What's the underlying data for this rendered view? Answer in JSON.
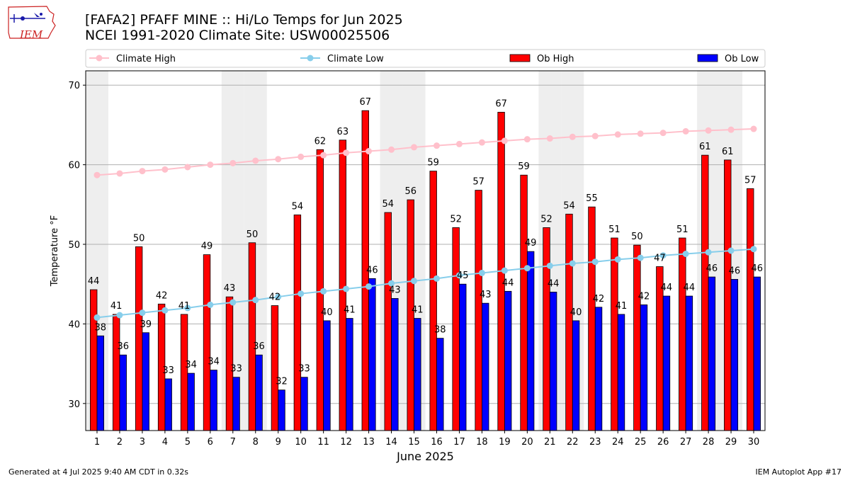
{
  "logo": {
    "text": "IEM",
    "icon": "iem-iowa-logo"
  },
  "header": {
    "title_line1": "[FAFA2] PFAFF MINE :: Hi/Lo Temps for Jun 2025",
    "title_line2": "NCEI 1991-2020 Climate Site: USW00025506"
  },
  "footer": {
    "left": "Generated at 4 Jul 2025 9:40 AM CDT in 0.32s",
    "right": "IEM Autoplot App #17"
  },
  "chart_data": {
    "type": "bar",
    "xlabel": "June 2025",
    "ylabel": "Temperature °F",
    "ylim": [
      26.6,
      71.8
    ],
    "yticks": [
      30,
      40,
      50,
      60,
      70
    ],
    "grid": true,
    "legend_placement": "top",
    "categories": [
      "1",
      "2",
      "3",
      "4",
      "5",
      "6",
      "7",
      "8",
      "9",
      "10",
      "11",
      "12",
      "13",
      "14",
      "15",
      "16",
      "17",
      "18",
      "19",
      "20",
      "21",
      "22",
      "23",
      "24",
      "25",
      "26",
      "27",
      "28",
      "29",
      "30"
    ],
    "weekend_days": [
      1,
      7,
      8,
      14,
      15,
      21,
      22,
      28,
      29
    ],
    "series": [
      {
        "name": "Climate High",
        "kind": "line",
        "color": "#ffc0cb",
        "values": [
          58.7,
          58.9,
          59.2,
          59.4,
          59.7,
          60.0,
          60.2,
          60.5,
          60.7,
          61.0,
          61.2,
          61.5,
          61.7,
          61.9,
          62.2,
          62.4,
          62.6,
          62.8,
          63.0,
          63.2,
          63.3,
          63.5,
          63.6,
          63.8,
          63.9,
          64.0,
          64.2,
          64.3,
          64.4,
          64.5
        ]
      },
      {
        "name": "Climate Low",
        "kind": "line",
        "color": "#87ceeb",
        "values": [
          40.8,
          41.1,
          41.4,
          41.7,
          42.0,
          42.4,
          42.7,
          43.0,
          43.4,
          43.8,
          44.1,
          44.4,
          44.7,
          45.1,
          45.4,
          45.7,
          46.1,
          46.4,
          46.7,
          47.0,
          47.3,
          47.6,
          47.8,
          48.1,
          48.3,
          48.6,
          48.8,
          49.0,
          49.2,
          49.4
        ]
      },
      {
        "name": "Ob High",
        "kind": "bar",
        "color": "#ff0000",
        "values": [
          44.3,
          41.2,
          49.7,
          42.5,
          41.2,
          48.7,
          43.4,
          50.2,
          42.3,
          53.7,
          61.9,
          63.1,
          66.8,
          54.0,
          55.6,
          59.2,
          52.1,
          56.8,
          66.6,
          58.7,
          52.1,
          53.8,
          54.7,
          50.8,
          49.9,
          47.2,
          50.8,
          61.2,
          60.6,
          57.0
        ],
        "labels": [
          "44",
          "41",
          "50",
          "42",
          "41",
          "49",
          "43",
          "50",
          "42",
          "54",
          "62",
          "63",
          "67",
          "54",
          "56",
          "59",
          "52",
          "57",
          "67",
          "59",
          "52",
          "54",
          "55",
          "51",
          "50",
          "47",
          "51",
          "61",
          "61",
          "57"
        ]
      },
      {
        "name": "Ob Low",
        "kind": "bar",
        "color": "#0000ff",
        "values": [
          38.5,
          36.1,
          38.9,
          33.1,
          33.8,
          34.2,
          33.3,
          36.1,
          31.7,
          33.3,
          40.4,
          40.7,
          45.7,
          43.2,
          40.7,
          38.2,
          45.0,
          42.6,
          44.1,
          49.1,
          44.0,
          40.4,
          42.1,
          41.2,
          42.4,
          43.5,
          43.5,
          45.9,
          45.6,
          45.9
        ],
        "labels": [
          "38",
          "36",
          "39",
          "33",
          "34",
          "34",
          "33",
          "36",
          "32",
          "33",
          "40",
          "41",
          "46",
          "43",
          "41",
          "38",
          "45",
          "43",
          "44",
          "49",
          "44",
          "40",
          "42",
          "41",
          "42",
          "44",
          "44",
          "46",
          "46",
          "46"
        ]
      }
    ]
  }
}
